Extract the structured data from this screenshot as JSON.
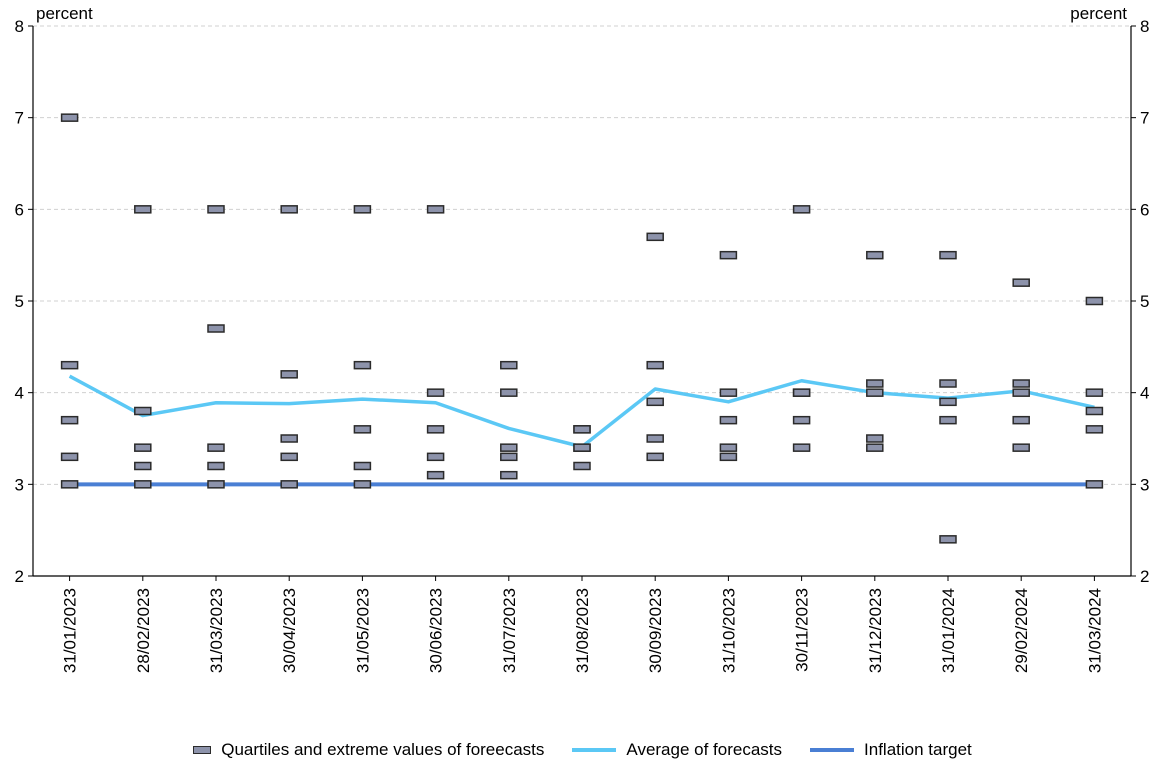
{
  "chart_data": {
    "type": "scatter",
    "y_unit_left": "percent",
    "y_unit_right": "percent",
    "ylim": [
      2,
      8
    ],
    "yticks": [
      "2",
      "3",
      "4",
      "5",
      "6",
      "7",
      "8"
    ],
    "grid": true,
    "legend_placement": "bottom-center",
    "categories": [
      "31/01/2023",
      "28/02/2023",
      "31/03/2023",
      "30/04/2023",
      "31/05/2023",
      "30/06/2023",
      "31/07/2023",
      "31/08/2023",
      "30/09/2023",
      "31/10/2023",
      "30/11/2023",
      "31/12/2023",
      "31/01/2024",
      "29/02/2024",
      "31/03/2024"
    ],
    "series": [
      {
        "name": "Quartiles and extreme values of foreecasts",
        "kind": "markers",
        "color": "#8d93ab",
        "values": [
          [
            3.0,
            3.3,
            3.7,
            4.3,
            7.0
          ],
          [
            3.0,
            3.2,
            3.4,
            3.8,
            6.0
          ],
          [
            3.0,
            3.2,
            3.4,
            4.7,
            6.0
          ],
          [
            3.0,
            3.3,
            3.5,
            4.2,
            6.0
          ],
          [
            3.0,
            3.2,
            3.6,
            4.3,
            6.0
          ],
          [
            3.1,
            3.3,
            3.6,
            4.0,
            6.0
          ],
          [
            3.1,
            3.3,
            3.4,
            4.0,
            4.3
          ],
          [
            3.2,
            3.4,
            3.4,
            3.6,
            3.6
          ],
          [
            3.3,
            3.5,
            3.9,
            4.3,
            5.7
          ],
          [
            3.3,
            3.4,
            3.7,
            4.0,
            5.5
          ],
          [
            3.4,
            3.7,
            4.0,
            4.0,
            6.0
          ],
          [
            3.4,
            3.5,
            4.0,
            4.1,
            5.5
          ],
          [
            2.4,
            3.7,
            3.9,
            4.1,
            5.5
          ],
          [
            3.4,
            3.7,
            4.0,
            4.1,
            5.2
          ],
          [
            3.0,
            3.6,
            3.8,
            4.0,
            5.0
          ]
        ]
      },
      {
        "name": "Average of forecasts",
        "kind": "line",
        "color": "#5bc8f5",
        "values": [
          4.18,
          3.75,
          3.89,
          3.88,
          3.93,
          3.89,
          3.61,
          3.41,
          4.04,
          3.9,
          4.13,
          4.0,
          3.94,
          4.02,
          3.84
        ]
      },
      {
        "name": "Inflation target",
        "kind": "line",
        "color": "#4a7fd4",
        "values": [
          3,
          3,
          3,
          3,
          3,
          3,
          3,
          3,
          3,
          3,
          3,
          3,
          3,
          3,
          3
        ]
      }
    ]
  }
}
